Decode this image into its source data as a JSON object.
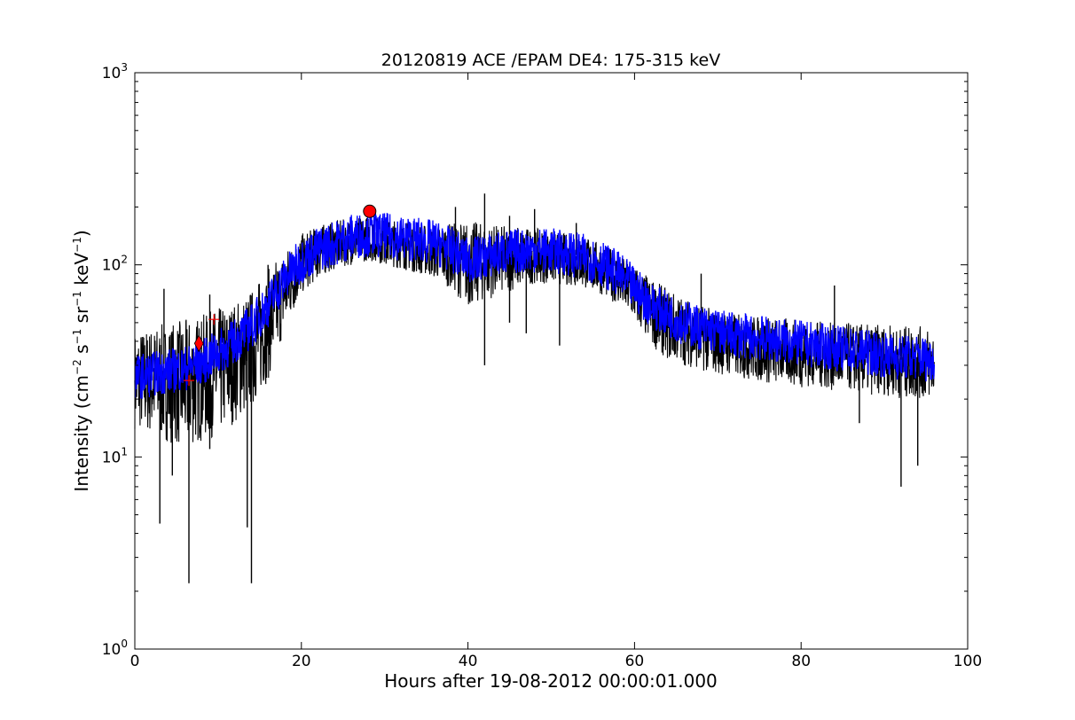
{
  "chart_data": {
    "type": "line",
    "title": "20120819 ACE /EPAM DE4: 175-315 keV",
    "xlabel": "Hours after 19-08-2012 00:00:01.000",
    "ylabel": {
      "prefix": "Intensity (cm",
      "sup1": "−2",
      "mid1": " s",
      "sup2": "−1",
      "mid2": " sr",
      "sup3": "−1",
      "mid3": " keV",
      "sup4": "−1",
      "suffix": ")"
    },
    "xlim": [
      0,
      100
    ],
    "ylim": [
      1,
      1000
    ],
    "yscale": "log",
    "grid": false,
    "legend": "none",
    "x_ticks": [
      "0",
      "20",
      "40",
      "60",
      "80",
      "100"
    ],
    "y_ticks": [
      {
        "base": "10",
        "exp": "0"
      },
      {
        "base": "10",
        "exp": "1"
      },
      {
        "base": "10",
        "exp": "2"
      },
      {
        "base": "10",
        "exp": "3"
      }
    ],
    "colors": {
      "raw": "#000000",
      "smoothed": "#0000ff",
      "markers": "#ff0000"
    },
    "series": [
      {
        "style": "black line (raw, noisy envelope)",
        "x": [
          0,
          2,
          4,
          6,
          8,
          10,
          12,
          14,
          16,
          18,
          20,
          22,
          24,
          26,
          28,
          30,
          32,
          34,
          36,
          38,
          40,
          42,
          44,
          46,
          48,
          50,
          52,
          54,
          56,
          58,
          60,
          62,
          64,
          66,
          68,
          70,
          72,
          74,
          76,
          78,
          80,
          82,
          84,
          86,
          88,
          90,
          92,
          94,
          96
        ],
        "upper": [
          45,
          48,
          50,
          52,
          55,
          60,
          65,
          75,
          95,
          120,
          145,
          160,
          170,
          175,
          180,
          175,
          170,
          165,
          160,
          165,
          170,
          165,
          160,
          160,
          155,
          150,
          145,
          140,
          130,
          115,
          100,
          85,
          75,
          68,
          62,
          58,
          56,
          55,
          54,
          53,
          52,
          51,
          50,
          50,
          49,
          49,
          48,
          48,
          47
        ],
        "lower": [
          14,
          13,
          12,
          11,
          12,
          13,
          15,
          18,
          25,
          45,
          70,
          85,
          95,
          100,
          105,
          100,
          95,
          90,
          85,
          75,
          60,
          65,
          70,
          75,
          80,
          80,
          78,
          75,
          70,
          62,
          50,
          38,
          32,
          30,
          28,
          27,
          26,
          25,
          24,
          24,
          23,
          23,
          22,
          22,
          21,
          21,
          20,
          20,
          20
        ],
        "dips": [
          [
            3,
            4.5
          ],
          [
            4.5,
            8
          ],
          [
            6.5,
            2.2
          ],
          [
            9,
            11
          ],
          [
            13.5,
            4.3
          ],
          [
            14,
            2.2
          ],
          [
            42,
            30
          ],
          [
            45,
            50
          ],
          [
            47,
            44
          ],
          [
            51,
            38
          ],
          [
            87,
            15
          ],
          [
            92,
            7
          ],
          [
            94,
            9
          ]
        ],
        "spikes": [
          [
            3.5,
            75
          ],
          [
            9,
            70
          ],
          [
            16,
            100
          ],
          [
            38.5,
            200
          ],
          [
            42,
            235
          ],
          [
            45,
            180
          ],
          [
            48,
            195
          ],
          [
            53,
            165
          ],
          [
            68,
            90
          ],
          [
            84,
            78
          ]
        ]
      },
      {
        "style": "blue line (smoothed)",
        "x": [
          0,
          2,
          4,
          6,
          8,
          10,
          12,
          14,
          16,
          18,
          20,
          22,
          24,
          26,
          28,
          30,
          32,
          34,
          36,
          38,
          40,
          42,
          44,
          46,
          48,
          50,
          52,
          54,
          56,
          58,
          60,
          62,
          64,
          66,
          68,
          70,
          72,
          74,
          76,
          78,
          80,
          82,
          84,
          86,
          88,
          90,
          92,
          94,
          96
        ],
        "values": [
          26,
          27,
          28,
          29,
          31,
          35,
          40,
          48,
          62,
          85,
          105,
          120,
          130,
          140,
          145,
          142,
          138,
          135,
          130,
          120,
          105,
          110,
          115,
          118,
          120,
          118,
          115,
          110,
          102,
          90,
          75,
          62,
          55,
          50,
          47,
          45,
          43,
          42,
          41,
          40,
          39,
          38,
          37,
          36,
          35,
          34,
          33,
          33,
          32
        ]
      }
    ],
    "markers": [
      {
        "shape": "circle",
        "x": 28.2,
        "y": 190
      },
      {
        "shape": "diamond",
        "x": 7.7,
        "y": 39
      },
      {
        "shape": "plus",
        "x": 6.5,
        "y": 25
      },
      {
        "shape": "plus",
        "x": 9.5,
        "y": 52
      }
    ]
  }
}
